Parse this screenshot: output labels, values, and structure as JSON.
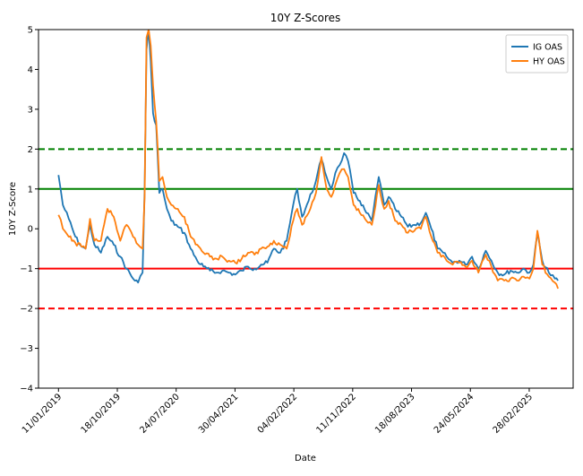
{
  "chart_data": {
    "type": "line",
    "title": "10Y Z-Scores",
    "xlabel": "Date",
    "ylabel": "10Y Z-Score",
    "ylim": [
      -4,
      5
    ],
    "yticks": [
      -4,
      -3,
      -2,
      -1,
      0,
      1,
      2,
      3,
      4,
      5
    ],
    "xticks": [
      "11/01/2019",
      "18/10/2019",
      "24/07/2020",
      "30/04/2021",
      "04/02/2022",
      "11/11/2022",
      "18/08/2023",
      "24/05/2024",
      "28/02/2025"
    ],
    "xlim": [
      "2018-10-08",
      "2025-09-25"
    ],
    "grid": false,
    "legend": "top-right",
    "reference_lines": [
      {
        "y": 2,
        "style": "dashed",
        "color": "#008000"
      },
      {
        "y": 1,
        "style": "solid",
        "color": "#008000"
      },
      {
        "y": -1,
        "style": "solid",
        "color": "#ff0000"
      },
      {
        "y": -2,
        "style": "dashed",
        "color": "#ff0000"
      }
    ],
    "series": [
      {
        "name": "IG OAS",
        "color": "#1f77b4",
        "points": [
          [
            "2019-01-11",
            1.35
          ],
          [
            "2019-02-01",
            0.6
          ],
          [
            "2019-03-01",
            0.25
          ],
          [
            "2019-04-01",
            -0.2
          ],
          [
            "2019-05-01",
            -0.45
          ],
          [
            "2019-05-20",
            -0.5
          ],
          [
            "2019-06-10",
            0.1
          ],
          [
            "2019-07-01",
            -0.4
          ],
          [
            "2019-08-01",
            -0.6
          ],
          [
            "2019-09-01",
            -0.2
          ],
          [
            "2019-10-01",
            -0.4
          ],
          [
            "2019-11-01",
            -0.7
          ],
          [
            "2019-12-01",
            -1.0
          ],
          [
            "2020-01-01",
            -1.25
          ],
          [
            "2020-01-25",
            -1.35
          ],
          [
            "2020-02-15",
            -1.1
          ],
          [
            "2020-02-25",
            1.0
          ],
          [
            "2020-03-05",
            4.5
          ],
          [
            "2020-03-15",
            5.0
          ],
          [
            "2020-03-25",
            4.2
          ],
          [
            "2020-04-05",
            2.9
          ],
          [
            "2020-04-20",
            2.6
          ],
          [
            "2020-05-05",
            0.9
          ],
          [
            "2020-05-20",
            1.0
          ],
          [
            "2020-06-10",
            0.5
          ],
          [
            "2020-07-01",
            0.2
          ],
          [
            "2020-08-01",
            0.05
          ],
          [
            "2020-09-01",
            -0.1
          ],
          [
            "2020-10-01",
            -0.5
          ],
          [
            "2020-11-01",
            -0.8
          ],
          [
            "2020-12-01",
            -0.95
          ],
          [
            "2021-01-01",
            -1.05
          ],
          [
            "2021-02-01",
            -1.1
          ],
          [
            "2021-03-01",
            -1.05
          ],
          [
            "2021-04-01",
            -1.1
          ],
          [
            "2021-05-01",
            -1.15
          ],
          [
            "2021-06-01",
            -1.05
          ],
          [
            "2021-07-01",
            -0.95
          ],
          [
            "2021-08-01",
            -1.0
          ],
          [
            "2021-09-01",
            -0.9
          ],
          [
            "2021-10-01",
            -0.85
          ],
          [
            "2021-11-01",
            -0.5
          ],
          [
            "2021-12-01",
            -0.6
          ],
          [
            "2022-01-01",
            -0.3
          ],
          [
            "2022-02-01",
            0.6
          ],
          [
            "2022-02-20",
            1.0
          ],
          [
            "2022-03-15",
            0.3
          ],
          [
            "2022-04-15",
            0.7
          ],
          [
            "2022-05-20",
            1.2
          ],
          [
            "2022-06-15",
            1.75
          ],
          [
            "2022-07-10",
            1.3
          ],
          [
            "2022-08-01",
            1.0
          ],
          [
            "2022-08-20",
            1.4
          ],
          [
            "2022-09-10",
            1.6
          ],
          [
            "2022-10-01",
            1.9
          ],
          [
            "2022-10-20",
            1.7
          ],
          [
            "2022-11-15",
            0.9
          ],
          [
            "2022-12-15",
            0.7
          ],
          [
            "2023-01-15",
            0.4
          ],
          [
            "2023-02-10",
            0.2
          ],
          [
            "2023-03-15",
            1.3
          ],
          [
            "2023-04-10",
            0.6
          ],
          [
            "2023-05-01",
            0.8
          ],
          [
            "2023-06-01",
            0.5
          ],
          [
            "2023-07-01",
            0.3
          ],
          [
            "2023-08-01",
            0.05
          ],
          [
            "2023-09-01",
            0.1
          ],
          [
            "2023-10-01",
            0.15
          ],
          [
            "2023-10-25",
            0.4
          ],
          [
            "2023-11-20",
            0.0
          ],
          [
            "2023-12-20",
            -0.5
          ],
          [
            "2024-02-01",
            -0.7
          ],
          [
            "2024-03-01",
            -0.85
          ],
          [
            "2024-04-01",
            -0.8
          ],
          [
            "2024-05-01",
            -0.9
          ],
          [
            "2024-06-01",
            -0.7
          ],
          [
            "2024-07-01",
            -1.0
          ],
          [
            "2024-08-05",
            -0.55
          ],
          [
            "2024-09-01",
            -0.8
          ],
          [
            "2024-10-01",
            -1.1
          ],
          [
            "2024-11-01",
            -1.15
          ],
          [
            "2024-12-01",
            -1.05
          ],
          [
            "2025-01-01",
            -1.1
          ],
          [
            "2025-02-01",
            -1.0
          ],
          [
            "2025-03-01",
            -1.1
          ],
          [
            "2025-03-20",
            -0.9
          ],
          [
            "2025-04-08",
            -0.1
          ],
          [
            "2025-05-01",
            -0.8
          ],
          [
            "2025-06-01",
            -1.1
          ],
          [
            "2025-06-30",
            -1.25
          ],
          [
            "2025-07-15",
            -1.3
          ]
        ]
      },
      {
        "name": "HY OAS",
        "color": "#ff7f0e",
        "points": [
          [
            "2019-01-11",
            0.35
          ],
          [
            "2019-02-01",
            0.0
          ],
          [
            "2019-03-01",
            -0.2
          ],
          [
            "2019-04-01",
            -0.35
          ],
          [
            "2019-05-01",
            -0.45
          ],
          [
            "2019-05-20",
            -0.5
          ],
          [
            "2019-06-10",
            0.25
          ],
          [
            "2019-07-01",
            -0.3
          ],
          [
            "2019-08-01",
            -0.3
          ],
          [
            "2019-09-01",
            0.5
          ],
          [
            "2019-10-01",
            0.3
          ],
          [
            "2019-11-01",
            -0.3
          ],
          [
            "2019-12-01",
            0.1
          ],
          [
            "2020-01-01",
            -0.2
          ],
          [
            "2020-01-25",
            -0.4
          ],
          [
            "2020-02-15",
            -0.5
          ],
          [
            "2020-02-25",
            0.8
          ],
          [
            "2020-03-05",
            4.8
          ],
          [
            "2020-03-15",
            5.0
          ],
          [
            "2020-03-25",
            4.6
          ],
          [
            "2020-04-05",
            3.6
          ],
          [
            "2020-04-20",
            2.7
          ],
          [
            "2020-05-05",
            1.2
          ],
          [
            "2020-05-20",
            1.3
          ],
          [
            "2020-06-10",
            0.8
          ],
          [
            "2020-07-01",
            0.6
          ],
          [
            "2020-08-01",
            0.5
          ],
          [
            "2020-09-01",
            0.3
          ],
          [
            "2020-10-01",
            -0.2
          ],
          [
            "2020-11-01",
            -0.4
          ],
          [
            "2020-12-01",
            -0.6
          ],
          [
            "2021-01-01",
            -0.7
          ],
          [
            "2021-02-01",
            -0.75
          ],
          [
            "2021-03-01",
            -0.7
          ],
          [
            "2021-04-01",
            -0.8
          ],
          [
            "2021-05-01",
            -0.85
          ],
          [
            "2021-06-01",
            -0.75
          ],
          [
            "2021-07-01",
            -0.6
          ],
          [
            "2021-08-01",
            -0.65
          ],
          [
            "2021-09-01",
            -0.5
          ],
          [
            "2021-10-01",
            -0.45
          ],
          [
            "2021-11-01",
            -0.3
          ],
          [
            "2021-12-01",
            -0.4
          ],
          [
            "2022-01-01",
            -0.5
          ],
          [
            "2022-02-01",
            0.2
          ],
          [
            "2022-02-20",
            0.5
          ],
          [
            "2022-03-15",
            0.1
          ],
          [
            "2022-04-15",
            0.4
          ],
          [
            "2022-05-20",
            0.9
          ],
          [
            "2022-06-15",
            1.8
          ],
          [
            "2022-07-10",
            1.0
          ],
          [
            "2022-08-01",
            0.8
          ],
          [
            "2022-08-20",
            1.1
          ],
          [
            "2022-09-10",
            1.4
          ],
          [
            "2022-10-01",
            1.5
          ],
          [
            "2022-10-20",
            1.3
          ],
          [
            "2022-11-15",
            0.6
          ],
          [
            "2022-12-15",
            0.4
          ],
          [
            "2023-01-15",
            0.2
          ],
          [
            "2023-02-10",
            0.1
          ],
          [
            "2023-03-15",
            1.1
          ],
          [
            "2023-04-10",
            0.5
          ],
          [
            "2023-05-01",
            0.7
          ],
          [
            "2023-06-01",
            0.2
          ],
          [
            "2023-07-01",
            0.1
          ],
          [
            "2023-08-01",
            -0.1
          ],
          [
            "2023-09-01",
            -0.05
          ],
          [
            "2023-10-01",
            0.0
          ],
          [
            "2023-10-25",
            0.3
          ],
          [
            "2023-11-20",
            -0.2
          ],
          [
            "2023-12-20",
            -0.6
          ],
          [
            "2024-02-01",
            -0.8
          ],
          [
            "2024-03-01",
            -0.9
          ],
          [
            "2024-04-01",
            -0.85
          ],
          [
            "2024-05-01",
            -0.95
          ],
          [
            "2024-06-01",
            -0.8
          ],
          [
            "2024-07-01",
            -1.1
          ],
          [
            "2024-08-05",
            -0.65
          ],
          [
            "2024-09-01",
            -0.95
          ],
          [
            "2024-10-01",
            -1.3
          ],
          [
            "2024-11-01",
            -1.3
          ],
          [
            "2024-12-01",
            -1.25
          ],
          [
            "2025-01-01",
            -1.3
          ],
          [
            "2025-02-01",
            -1.2
          ],
          [
            "2025-03-01",
            -1.25
          ],
          [
            "2025-03-20",
            -1.0
          ],
          [
            "2025-04-08",
            -0.05
          ],
          [
            "2025-05-01",
            -0.9
          ],
          [
            "2025-06-01",
            -1.2
          ],
          [
            "2025-06-30",
            -1.35
          ],
          [
            "2025-07-15",
            -1.5
          ]
        ]
      }
    ]
  }
}
